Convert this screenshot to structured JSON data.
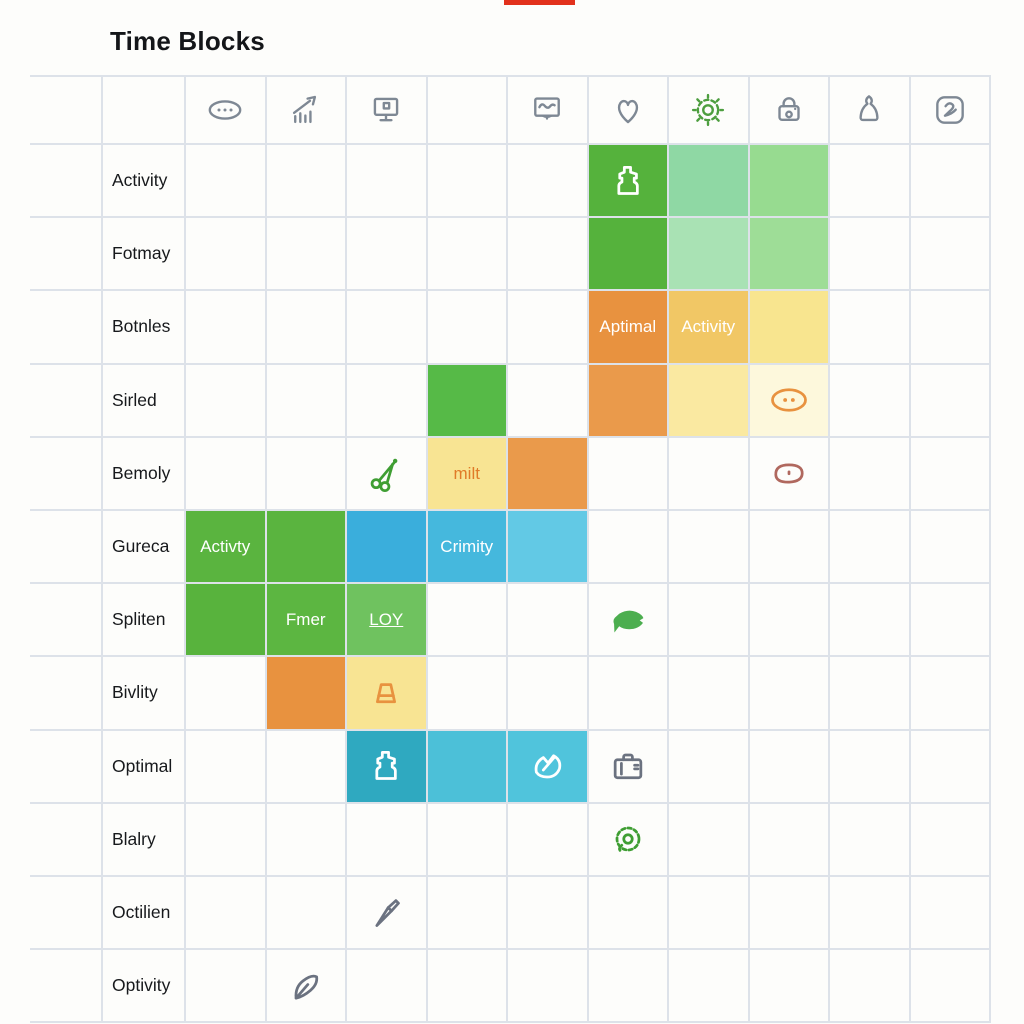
{
  "title": "Time Blocks",
  "top_marker_color": "#e2311c",
  "gridline_color": "#dde2e9",
  "header": {
    "columns": [
      {
        "icon": "dots-bubble-icon",
        "color": "#7e8894"
      },
      {
        "icon": "trend-chart-icon",
        "color": "#7e8894"
      },
      {
        "icon": "monitor-icon",
        "color": "#7e8894"
      },
      {
        "icon": null,
        "color": null
      },
      {
        "icon": "screen-scribble-icon",
        "color": "#7e8894"
      },
      {
        "icon": "heart-icon",
        "color": "#7e8894"
      },
      {
        "icon": "gear-icon",
        "color": "#4d9e3f"
      },
      {
        "icon": "lock-icon",
        "color": "#7e8894"
      },
      {
        "icon": "person-icon",
        "color": "#7e8894"
      },
      {
        "icon": "pen-square-icon",
        "color": "#7e8894"
      }
    ]
  },
  "rows": [
    {
      "label": "Activity",
      "cells": [
        null,
        null,
        null,
        null,
        null,
        {
          "bg": "#55b23c",
          "icon": "jug-icon",
          "icon_color": "#ffffff"
        },
        {
          "bg": "#8fd8a4"
        },
        {
          "bg": "#97db90"
        },
        null,
        null
      ]
    },
    {
      "label": "Fotmay",
      "cells": [
        null,
        null,
        null,
        null,
        null,
        {
          "bg": "#55b23c"
        },
        {
          "bg": "#a9e2b4"
        },
        {
          "bg": "#9edd97"
        },
        null,
        null
      ]
    },
    {
      "label": "Botnles",
      "cells": [
        null,
        null,
        null,
        null,
        null,
        {
          "bg": "#e8923f",
          "text": "Aptimal",
          "text_color": "#ffffff"
        },
        {
          "bg": "#f1c765",
          "text": "Activity",
          "text_color": "#ffffff"
        },
        {
          "bg": "#f8e58f"
        },
        null,
        null
      ]
    },
    {
      "label": "Sirled",
      "cells": [
        null,
        null,
        null,
        {
          "bg": "#56ba47"
        },
        null,
        {
          "bg": "#ea9a4b"
        },
        {
          "bg": "#fae9a1"
        },
        {
          "bg": "#fdf8dc",
          "icon": "eyes-oval-icon",
          "icon_color": "#e8923f"
        },
        null,
        null
      ]
    },
    {
      "label": "Bemoly",
      "cells": [
        null,
        null,
        {
          "icon": "scissors-icon",
          "icon_color": "#3f9e33"
        },
        {
          "bg": "#f8e493",
          "text": "milt",
          "text_color": "#e07b28"
        },
        {
          "bg": "#ea9a4b"
        },
        null,
        null,
        {
          "icon": "oval-icon",
          "icon_color": "#b0685e"
        },
        null,
        null
      ]
    },
    {
      "label": "Gureca",
      "cells": [
        {
          "bg": "#5ab43f",
          "text": "Activty",
          "text_color": "#ffffff"
        },
        {
          "bg": "#5ab43f"
        },
        {
          "bg": "#3aaedc"
        },
        {
          "bg": "#45b8dd",
          "text": "Crimity",
          "text_color": "#ffffff"
        },
        {
          "bg": "#62c9e5"
        },
        null,
        null,
        null,
        null,
        null
      ]
    },
    {
      "label": "Spliten",
      "cells": [
        {
          "bg": "#58b33d"
        },
        {
          "bg": "#5cb641",
          "text": "Fmer",
          "text_color": "#ffffff"
        },
        {
          "bg": "#6fc25f",
          "text": "LOY",
          "text_color": "#ffffff",
          "underline": true
        },
        null,
        null,
        {
          "icon": "fish-icon",
          "icon_color": "#4cae4f"
        },
        null,
        null,
        null,
        null
      ]
    },
    {
      "label": "Bivlity",
      "cells": [
        null,
        {
          "bg": "#e8923f"
        },
        {
          "bg": "#f8e493",
          "icon": "bucket-icon",
          "icon_color": "#e8923f"
        },
        null,
        null,
        null,
        null,
        null,
        null,
        null
      ]
    },
    {
      "label": "Optimal",
      "cells": [
        null,
        null,
        {
          "bg": "#2fa9c0",
          "icon": "jug-icon",
          "icon_color": "#ffffff"
        },
        {
          "bg": "#4cc0d8"
        },
        {
          "bg": "#50c4dc",
          "icon": "hand-pen-icon",
          "icon_color": "#ffffff"
        },
        {
          "icon": "briefcase-icon",
          "icon_color": "#6b7280"
        },
        null,
        null,
        null,
        null
      ]
    },
    {
      "label": "Blalry",
      "cells": [
        null,
        null,
        null,
        null,
        null,
        {
          "icon": "starburst-icon",
          "icon_color": "#3f9e33"
        },
        null,
        null,
        null,
        null
      ]
    },
    {
      "label": "Octilien",
      "cells": [
        null,
        null,
        {
          "icon": "pen-icon",
          "icon_color": "#6b7280"
        },
        null,
        null,
        null,
        null,
        null,
        null,
        null
      ]
    },
    {
      "label": "Optivity",
      "cells": [
        null,
        {
          "icon": "feather-icon",
          "icon_color": "#6b7280"
        },
        null,
        null,
        null,
        null,
        null,
        null,
        null,
        null
      ]
    }
  ]
}
